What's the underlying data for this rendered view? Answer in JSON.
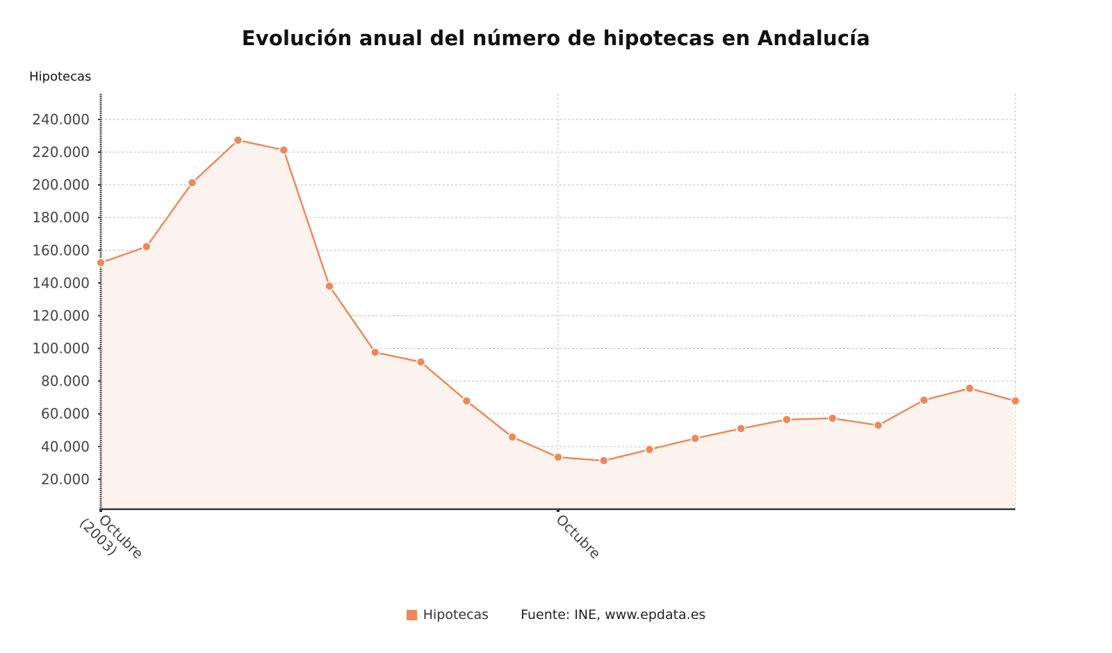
{
  "title": "Evolución anual del número de hipotecas en Andalucía",
  "y_axis_title": "Hipotecas",
  "legend": {
    "label": "Hipotecas",
    "color": "#F0875A"
  },
  "source": "Fuente: INE, www.epdata.es",
  "colors": {
    "line": "#EA8A5C",
    "marker": "#F0875A",
    "fill": "#FDF3EE",
    "grid": "#BBBBBB",
    "axis": "#333333"
  },
  "chart_data": {
    "type": "area",
    "title": "Evolución anual del número de hipotecas en Andalucía",
    "xlabel": "",
    "ylabel": "Hipotecas",
    "x_tick_labels": [
      "Octubre (2003)",
      "Octubre"
    ],
    "x_tick_positions": [
      0,
      10
    ],
    "categories": [
      "Octubre (2003)",
      "",
      "",
      "",
      "",
      "",
      "",
      "",
      "",
      "",
      "Octubre",
      "",
      "",
      "",
      "",
      "",
      "",
      "",
      "",
      "",
      ""
    ],
    "series": [
      {
        "name": "Hipotecas",
        "values": [
          152400,
          162200,
          201300,
          227300,
          221300,
          138100,
          97600,
          91700,
          67900,
          45800,
          33500,
          31400,
          38200,
          45000,
          51000,
          56500,
          57300,
          53000,
          68400,
          75600,
          67900
        ]
      }
    ],
    "y_ticks": [
      "20.000",
      "40.000",
      "60.000",
      "80.000",
      "100.000",
      "120.000",
      "140.000",
      "160.000",
      "180.000",
      "200.000",
      "220.000",
      "240.000"
    ],
    "y_tick_values": [
      20000,
      40000,
      60000,
      80000,
      100000,
      120000,
      140000,
      160000,
      180000,
      200000,
      220000,
      240000
    ],
    "ylim": [
      0,
      255000
    ],
    "grid": true,
    "legend_position": "bottom"
  }
}
